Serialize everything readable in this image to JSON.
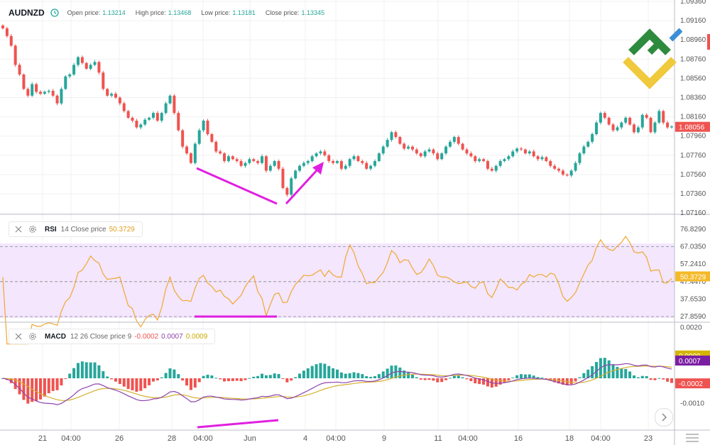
{
  "header": {
    "symbol": "AUDNZD",
    "open_label": "Open price:",
    "open_value": "1.13214",
    "high_label": "High price:",
    "high_value": "1.13468",
    "low_label": "Low price:",
    "low_value": "1.13181",
    "close_label": "Close price:",
    "close_value": "1.13345"
  },
  "rsi_legend": {
    "name": "RSI",
    "params": "14 Close price",
    "value": "50.3729"
  },
  "macd_legend": {
    "name": "MACD",
    "params": "12 26 Close price 9",
    "v1": "-0.0002",
    "v2": "0.0007",
    "v3": "0.0009"
  },
  "colors": {
    "bull": "#26a69a",
    "bear": "#ef5350",
    "rsi_line": "#f0a830",
    "rsi_band": "#f3e6fd",
    "macd_line": "#8e44ad",
    "signal_line": "#d4b030",
    "annotation": "#e020e0",
    "last_price": "#ef5350",
    "macd_value_badge": "#7b1fa2",
    "signal_value_badge": "#d4b400"
  },
  "icons": {
    "clock": "clock-icon",
    "close": "close-icon",
    "settings": "gear-icon",
    "scroll": "chevron-right-icon"
  },
  "chart_data": {
    "type": "candlestick",
    "price_axis_ticks": [
      "1.09360",
      "1.09160",
      "1.08960",
      "1.08760",
      "1.08560",
      "1.08360",
      "1.08160",
      "1.07960",
      "1.07760",
      "1.07560",
      "1.07360",
      "1.07160"
    ],
    "last_price": "1.08056",
    "x_tick_labels": [
      "21",
      "04:00",
      "26",
      "28",
      "04:00",
      "Jun",
      "4",
      "04:00",
      "9",
      "11",
      "04:00",
      "16",
      "18",
      "04:00",
      "23"
    ],
    "close": [
      1.0908,
      1.09,
      1.089,
      1.087,
      1.086,
      1.0845,
      1.0838,
      1.085,
      1.0842,
      1.084,
      1.0842,
      1.0843,
      1.0838,
      1.083,
      1.0845,
      1.0858,
      1.086,
      1.087,
      1.0878,
      1.0872,
      1.0866,
      1.087,
      1.0873,
      1.0862,
      1.0845,
      1.0838,
      1.084,
      1.0836,
      1.083,
      1.0822,
      1.0815,
      1.0812,
      1.0805,
      1.0808,
      1.0813,
      1.0815,
      1.082,
      1.0812,
      1.082,
      1.083,
      1.0838,
      1.082,
      1.0802,
      1.0785,
      1.0778,
      1.0768,
      1.0788,
      1.0802,
      1.0812,
      1.0798,
      1.079,
      1.078,
      1.0778,
      1.077,
      1.0775,
      1.0772,
      1.077,
      1.0765,
      1.0768,
      1.0772,
      1.077,
      1.0768,
      1.0775,
      1.076,
      1.0765,
      1.077,
      1.0762,
      1.0742,
      1.0735,
      1.0752,
      1.076,
      1.0765,
      1.0768,
      1.077,
      1.0775,
      1.0778,
      1.078,
      1.0776,
      1.077,
      1.0768,
      1.077,
      1.0762,
      1.0765,
      1.0772,
      1.0775,
      1.077,
      1.0768,
      1.0762,
      1.0765,
      1.077,
      1.0778,
      1.0785,
      1.0792,
      1.08,
      1.0795,
      1.0788,
      1.0783,
      1.0785,
      1.0782,
      1.0778,
      1.0775,
      1.078,
      1.0782,
      1.0778,
      1.0772,
      1.0778,
      1.0785,
      1.079,
      1.0795,
      1.0788,
      1.0782,
      1.0778,
      1.0775,
      1.077,
      1.0772,
      1.077,
      1.0762,
      1.076,
      1.0765,
      1.077,
      1.0772,
      1.0775,
      1.078,
      1.0783,
      1.0782,
      1.0778,
      1.078,
      1.0775,
      1.0772,
      1.0774,
      1.077,
      1.0765,
      1.0762,
      1.076,
      1.0756,
      1.0755,
      1.076,
      1.0768,
      1.0778,
      1.0785,
      1.079,
      1.0798,
      1.081,
      1.082,
      1.0815,
      1.0808,
      1.0802,
      1.0805,
      1.081,
      1.0815,
      1.0808,
      1.08,
      1.0805,
      1.0818,
      1.0815,
      1.08,
      1.081,
      1.0822,
      1.081,
      1.0805,
      1.0806
    ]
  }
}
